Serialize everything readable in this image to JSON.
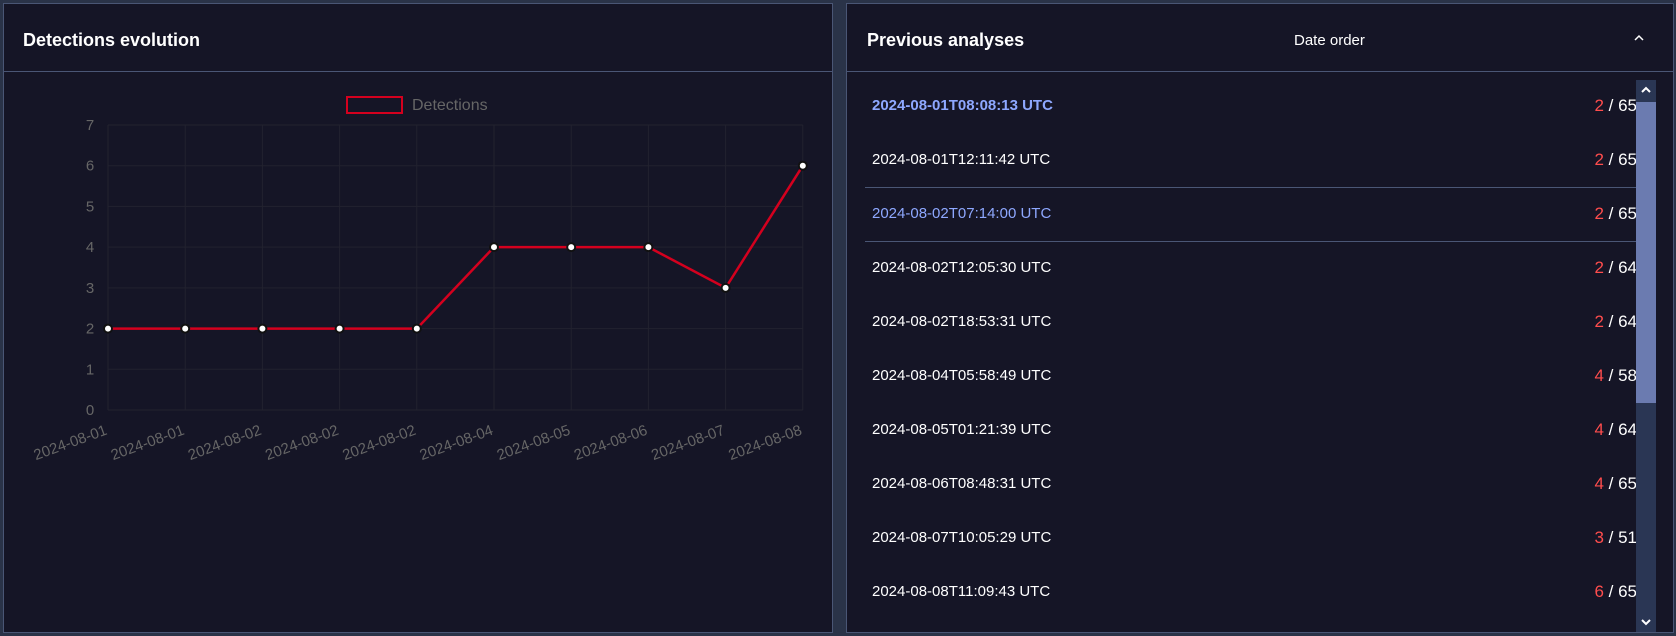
{
  "left_panel": {
    "title": "Detections evolution"
  },
  "right_panel": {
    "title": "Previous analyses",
    "sort_label": "Date order",
    "items": [
      {
        "date": "2024-08-01T08:08:13 UTC",
        "detections": "2",
        "total": "65"
      },
      {
        "date": "2024-08-01T12:11:42 UTC",
        "detections": "2",
        "total": "65"
      },
      {
        "date": "2024-08-02T07:14:00 UTC",
        "detections": "2",
        "total": "65"
      },
      {
        "date": "2024-08-02T12:05:30 UTC",
        "detections": "2",
        "total": "64"
      },
      {
        "date": "2024-08-02T18:53:31 UTC",
        "detections": "2",
        "total": "64"
      },
      {
        "date": "2024-08-04T05:58:49 UTC",
        "detections": "4",
        "total": "58"
      },
      {
        "date": "2024-08-05T01:21:39 UTC",
        "detections": "4",
        "total": "64"
      },
      {
        "date": "2024-08-06T08:48:31 UTC",
        "detections": "4",
        "total": "65"
      },
      {
        "date": "2024-08-07T10:05:29 UTC",
        "detections": "3",
        "total": "51"
      },
      {
        "date": "2024-08-08T11:09:43 UTC",
        "detections": "6",
        "total": "65"
      }
    ]
  },
  "chart_data": {
    "type": "line",
    "categories": [
      "2024-08-01",
      "2024-08-01",
      "2024-08-02",
      "2024-08-02",
      "2024-08-02",
      "2024-08-04",
      "2024-08-05",
      "2024-08-06",
      "2024-08-07",
      "2024-08-08"
    ],
    "series": [
      {
        "name": "Detections",
        "values": [
          2,
          2,
          2,
          2,
          2,
          4,
          4,
          4,
          3,
          6
        ]
      }
    ],
    "ylim": [
      0,
      7
    ],
    "yticks": [
      "0",
      "1",
      "2",
      "3",
      "4",
      "5",
      "6",
      "7"
    ],
    "legend": "top",
    "grid": true,
    "colors": {
      "line": "#d4001e",
      "marker_fill": "#ffffff",
      "tick_text": "#666666",
      "grid": "#22222f"
    }
  },
  "colors": {
    "panel_bg": "#151526",
    "page_bg": "#2a3348",
    "border": "#4a5675",
    "accent_link": "#8ea8ff",
    "detection_count": "#ff4d4d"
  },
  "icons": {
    "collapse": "chevron-up-icon",
    "scroll_up": "scroll-up-arrow-icon",
    "scroll_down": "scroll-down-arrow-icon"
  }
}
